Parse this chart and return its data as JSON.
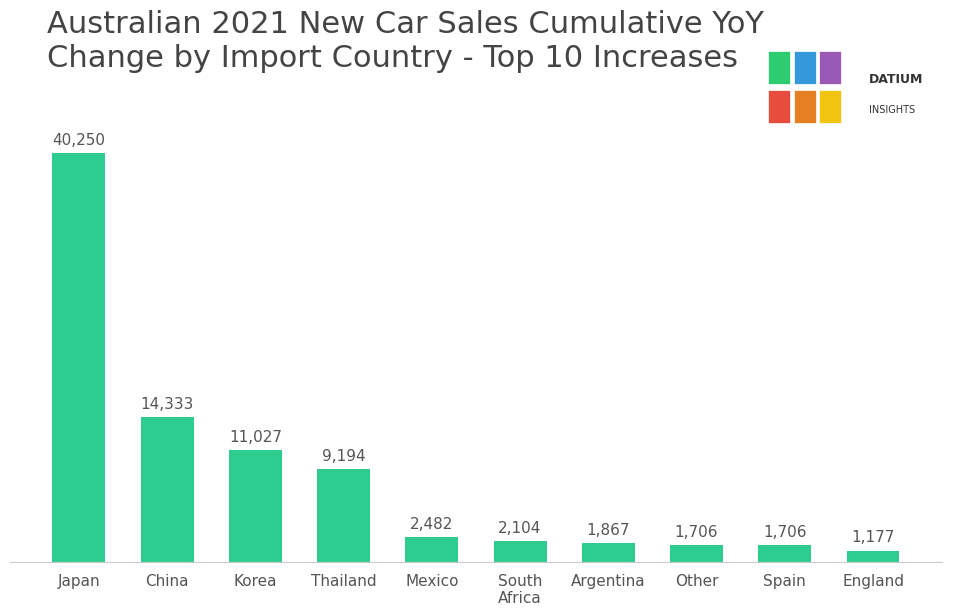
{
  "title": "Australian 2021 New Car Sales Cumulative YoY\nChange by Import Country - Top 10 Increases",
  "categories": [
    "Japan",
    "China",
    "Korea",
    "Thailand",
    "Mexico",
    "South\nAfrica",
    "Argentina",
    "Other",
    "Spain",
    "England"
  ],
  "values": [
    40250,
    14333,
    11027,
    9194,
    2482,
    2104,
    1867,
    1706,
    1706,
    1177
  ],
  "bar_color": "#2ecc8e",
  "background_color": "#ffffff",
  "title_fontsize": 22,
  "label_fontsize": 11,
  "tick_fontsize": 11,
  "value_labels": [
    "40,250",
    "14,333",
    "11,027",
    "9,194",
    "2,482",
    "2,104",
    "1,867",
    "1,706",
    "1,706",
    "1,177"
  ],
  "ylim": [
    0,
    46000
  ]
}
